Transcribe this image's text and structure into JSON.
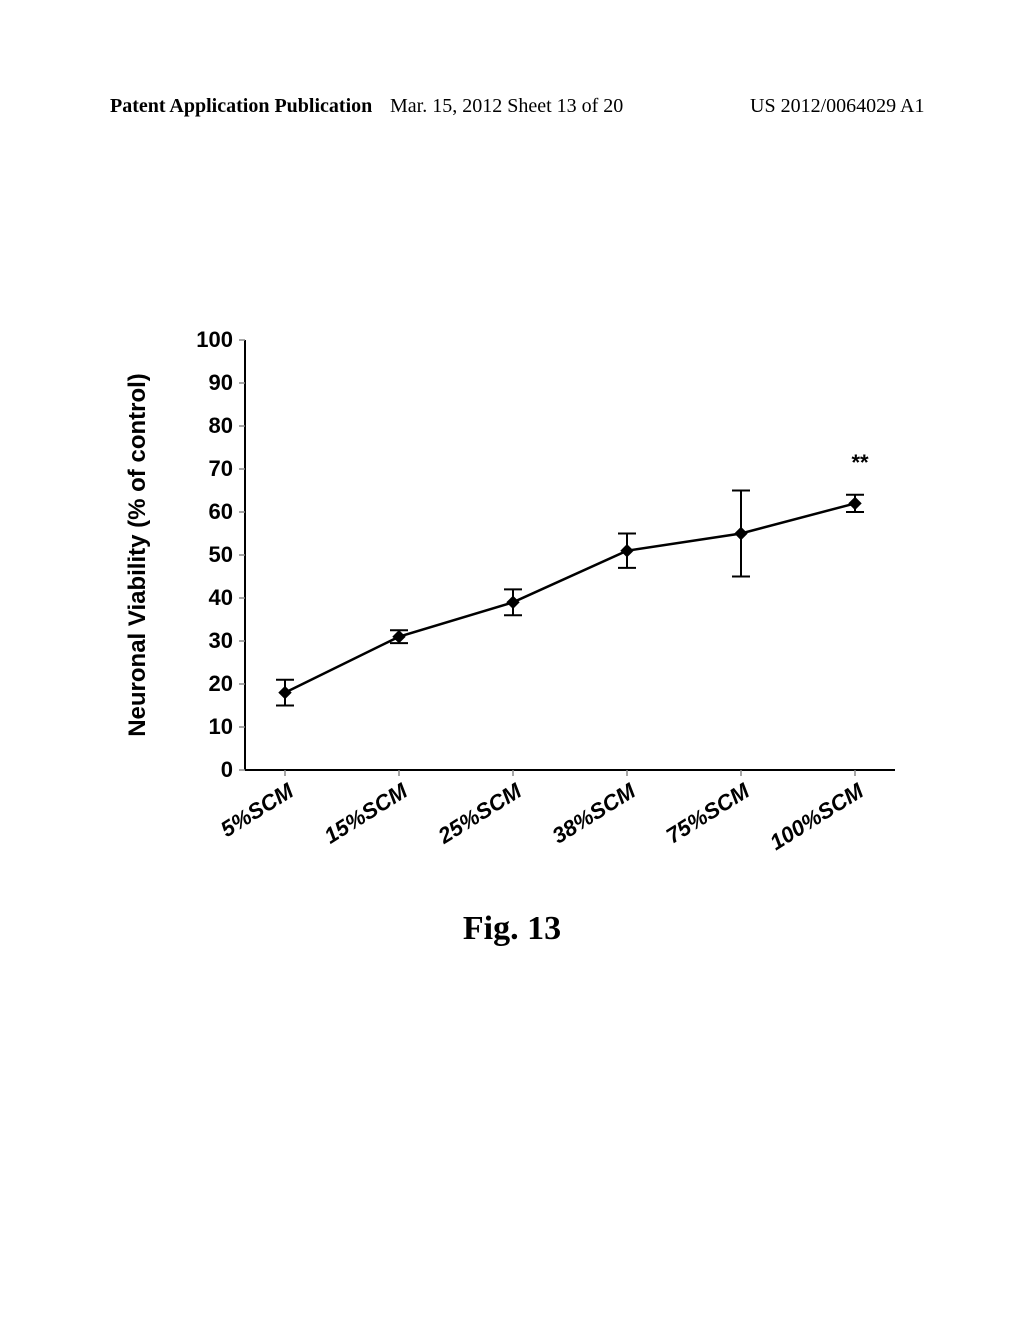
{
  "header": {
    "left": "Patent Application Publication",
    "mid": "Mar. 15, 2012  Sheet 13 of 20",
    "right": "US 2012/0064029 A1"
  },
  "caption": "Fig. 13",
  "chart": {
    "type": "line",
    "ylabel": "Neuronal Viability (% of control)",
    "categories": [
      "5%SCM",
      "15%SCM",
      "25%SCM",
      "38%SCM",
      "75%SCM",
      "100%SCM"
    ],
    "values": [
      18,
      31,
      39,
      51,
      55,
      62
    ],
    "err": [
      3,
      1.5,
      3,
      4,
      10,
      2
    ],
    "significance": [
      null,
      null,
      null,
      null,
      null,
      "**"
    ],
    "ylim": [
      0,
      100
    ],
    "ytick_step": 10,
    "marker_color": "#000000",
    "line_color": "#000000",
    "axis_color": "#000000",
    "tick_color": "#888888",
    "background": "#ffffff",
    "line_width": 2.5,
    "marker_size": 6,
    "ylabel_fontsize": 24,
    "tick_fontsize": 22
  }
}
